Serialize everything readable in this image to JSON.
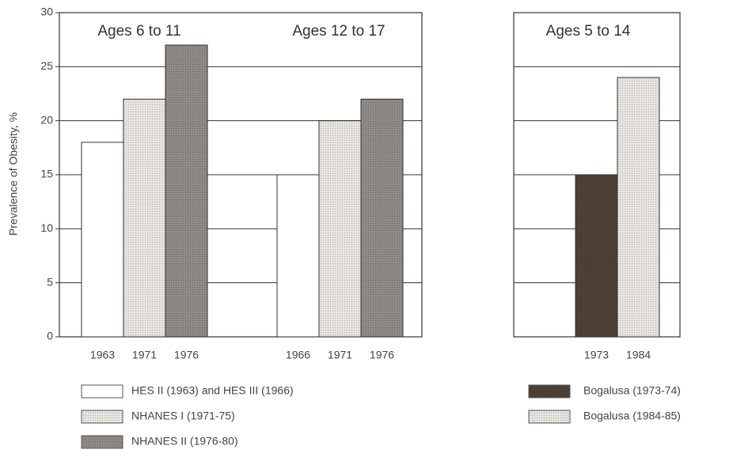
{
  "chart_data": [
    {
      "type": "bar",
      "ylabel": "Prevalence of Obesity, %",
      "groups": [
        "Ages 6 to 11",
        "Ages 12 to 17"
      ],
      "x_labels": [
        [
          "1963",
          "1971",
          "1976"
        ],
        [
          "1966",
          "1971",
          "1976"
        ]
      ],
      "series": [
        {
          "name": "HES II (1963) and HES III (1966)",
          "color": "#ffffff",
          "values": [
            18,
            15
          ]
        },
        {
          "name": "NHANES I (1971-75)",
          "color": "#e7e4e0",
          "values": [
            22,
            20
          ]
        },
        {
          "name": "NHANES II (1976-80)",
          "color": "#8e8a85",
          "values": [
            27,
            22
          ]
        }
      ],
      "ylim": [
        0,
        30
      ],
      "yticks": [
        0,
        5,
        10,
        15,
        20,
        25,
        30
      ],
      "grid": true
    },
    {
      "type": "bar",
      "groups": [
        "Ages 5 to 14"
      ],
      "x_labels": [
        [
          "1973",
          "1984"
        ]
      ],
      "series": [
        {
          "name": "Bogalusa (1973-74)",
          "color": "#4e4135",
          "values": [
            15
          ]
        },
        {
          "name": "Bogalusa (1984-85)",
          "color": "#e7e4e0",
          "values": [
            24
          ]
        }
      ],
      "ylim": [
        0,
        30
      ],
      "yticks": [
        0,
        5,
        10,
        15,
        20,
        25,
        30
      ],
      "grid": true
    }
  ]
}
